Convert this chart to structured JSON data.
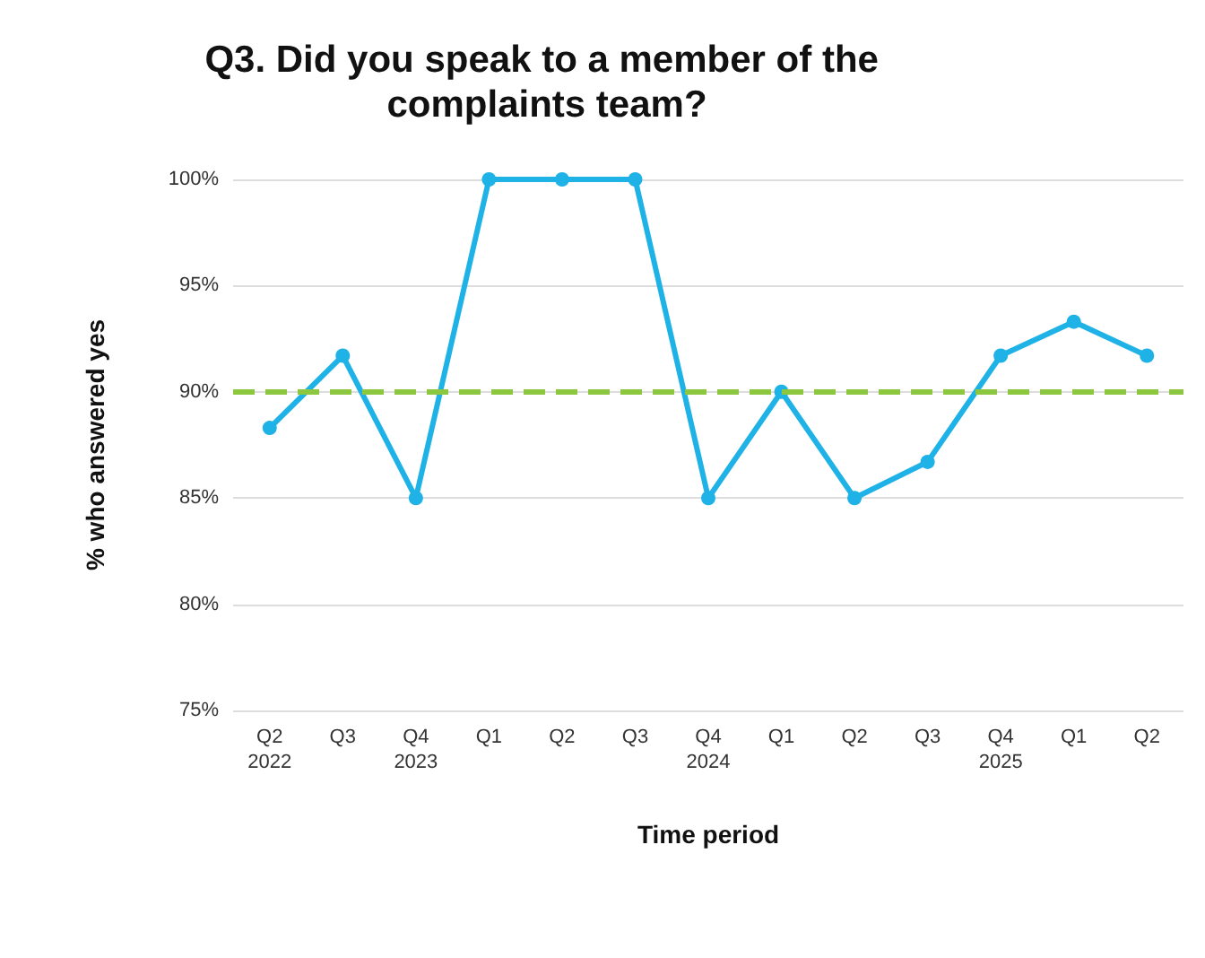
{
  "chart_data": {
    "type": "line",
    "title": "Q3. Did you speak to a member of the complaints team?",
    "xlabel": "Time period",
    "ylabel": "% who answered yes",
    "categories": [
      "Q2\n2022",
      "Q3",
      "Q4\n2023",
      "Q1",
      "Q2",
      "Q3",
      "Q4\n2024",
      "Q1",
      "Q2",
      "Q3",
      "Q4\n2025",
      "Q1",
      "Q2"
    ],
    "series": [
      {
        "color": "#1fb2e6",
        "values": [
          88.3,
          91.7,
          85,
          100,
          100,
          100,
          85,
          90,
          85,
          86.7,
          91.7,
          93.3,
          91.7
        ]
      }
    ],
    "ylim": [
      75,
      100
    ],
    "yticks": [
      {
        "value": 75,
        "label": "75%"
      },
      {
        "value": 80,
        "label": "80%"
      },
      {
        "value": 85,
        "label": "85%"
      },
      {
        "value": 90,
        "label": "90%"
      },
      {
        "value": 95,
        "label": "95%"
      },
      {
        "value": 100,
        "label": "100%"
      }
    ],
    "ref_lines": [
      {
        "axis": "y",
        "value": 90,
        "label": null,
        "color": "#8dc63f",
        "line_style": "dashed"
      }
    ],
    "grid": "y",
    "marker": "circle",
    "line_style": "solid"
  }
}
